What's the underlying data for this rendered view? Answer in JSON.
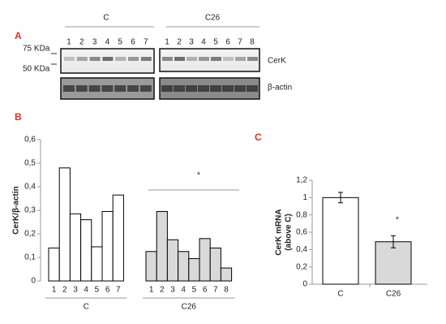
{
  "panel_a": {
    "label": "A",
    "groups": [
      {
        "name": "C",
        "lanes": [
          "1",
          "2",
          "3",
          "4",
          "5",
          "6",
          "7"
        ]
      },
      {
        "name": "C26",
        "lanes": [
          "1",
          "2",
          "3",
          "4",
          "5",
          "6",
          "7",
          "8"
        ]
      }
    ],
    "markers": [
      "75 KDa",
      "50 KDa"
    ],
    "bands": [
      "CerK",
      "β-actin"
    ]
  },
  "chart_data": [
    {
      "type": "grouped_bar",
      "panel_label": "B",
      "y_label": "CerK/β-actin",
      "groups": [
        {
          "name": "C",
          "color": "#ffffff",
          "categories": [
            "1",
            "2",
            "3",
            "4",
            "5",
            "6",
            "7"
          ],
          "values": [
            0.14,
            0.48,
            0.285,
            0.26,
            0.145,
            0.295,
            0.365
          ]
        },
        {
          "name": "C26",
          "color": "#d9d9d9",
          "categories": [
            "1",
            "2",
            "3",
            "4",
            "5",
            "6",
            "7",
            "8"
          ],
          "values": [
            0.125,
            0.295,
            0.175,
            0.125,
            0.095,
            0.18,
            0.14,
            0.055
          ]
        }
      ],
      "ylim": [
        0,
        0.6
      ],
      "yticks": [
        0,
        {
          "value": 0.1,
          "label": "0,1"
        },
        {
          "value": 0.2,
          "label": "0,2"
        },
        {
          "value": 0.3,
          "label": "0,3"
        },
        {
          "value": 0.4,
          "label": "0,4"
        },
        {
          "value": 0.5,
          "label": "0,5"
        },
        {
          "value": 0.6,
          "label": "0,6"
        }
      ],
      "annotation": "*"
    },
    {
      "type": "bar",
      "panel_label": "C",
      "y_label": [
        "CerK mRNA",
        "(above C)"
      ],
      "categories": [
        "C",
        "C26"
      ],
      "values": [
        1,
        0.49
      ],
      "errors": [
        0.06,
        0.07
      ],
      "colors": [
        "#ffffff",
        "#d9d9d9"
      ],
      "ylim": [
        0,
        1.2
      ],
      "yticks": [
        0,
        {
          "value": 0.2,
          "label": "0,2"
        },
        {
          "value": 0.4,
          "label": "0,4"
        },
        {
          "value": 0.6,
          "label": "0,6"
        },
        {
          "value": 0.8,
          "label": "0,8"
        },
        1,
        {
          "value": 1.2,
          "label": "1,2"
        }
      ],
      "annotation": "*"
    }
  ]
}
